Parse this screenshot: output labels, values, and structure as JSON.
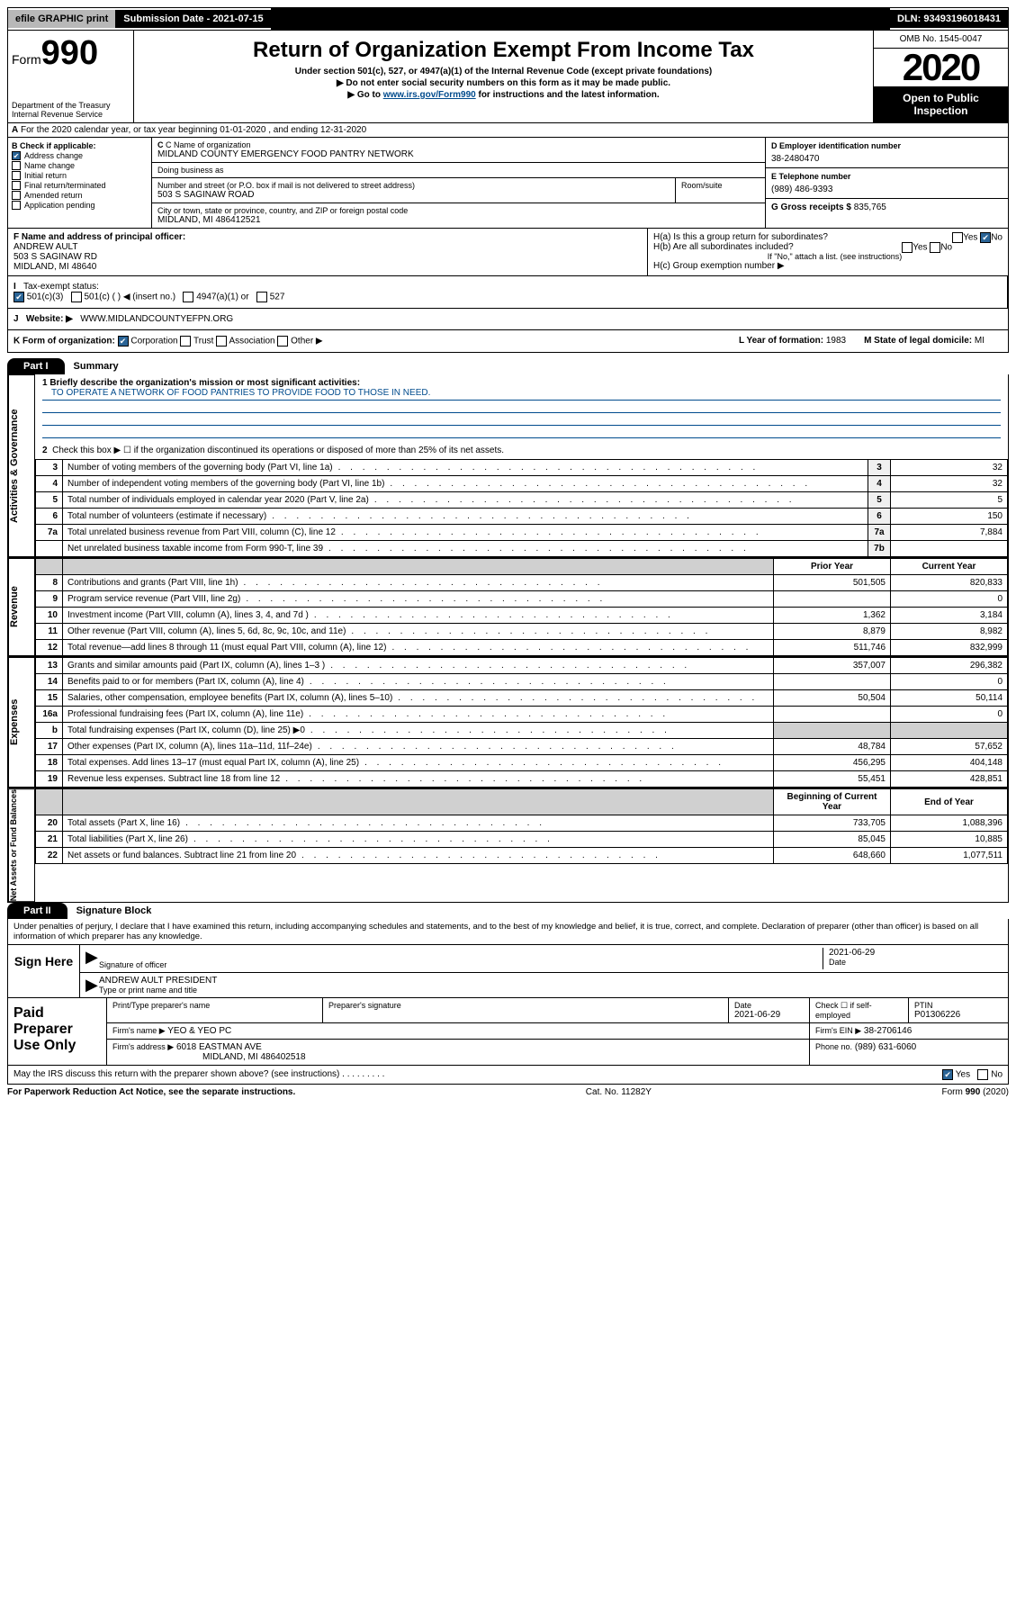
{
  "topbar": {
    "efile": "efile GRAPHIC print",
    "sub_label": "Submission Date - 2021-07-15",
    "dln": "DLN: 93493196018431"
  },
  "header": {
    "form_prefix": "Form",
    "form_num": "990",
    "dept": "Department of the Treasury\nInternal Revenue Service",
    "title": "Return of Organization Exempt From Income Tax",
    "sub1": "Under section 501(c), 527, or 4947(a)(1) of the Internal Revenue Code (except private foundations)",
    "sub2": "▶ Do not enter social security numbers on this form as it may be made public.",
    "sub3_pre": "▶ Go to ",
    "sub3_link": "www.irs.gov/Form990",
    "sub3_post": " for instructions and the latest information.",
    "omb": "OMB No. 1545-0047",
    "year": "2020",
    "open": "Open to Public Inspection"
  },
  "rowA": "For the 2020 calendar year, or tax year beginning 01-01-2020   , and ending 12-31-2020",
  "checkB": {
    "header": "B Check if applicable:",
    "items": [
      {
        "label": "Address change",
        "checked": true
      },
      {
        "label": "Name change",
        "checked": false
      },
      {
        "label": "Initial return",
        "checked": false
      },
      {
        "label": "Final return/terminated",
        "checked": false
      },
      {
        "label": "Amended return",
        "checked": false
      },
      {
        "label": "Application pending",
        "checked": false
      }
    ]
  },
  "org": {
    "name_label": "C Name of organization",
    "name": "MIDLAND COUNTY EMERGENCY FOOD PANTRY NETWORK",
    "dba_label": "Doing business as",
    "addr_label": "Number and street (or P.O. box if mail is not delivered to street address)",
    "addr": "503 S SAGINAW ROAD",
    "room_label": "Room/suite",
    "city_label": "City or town, state or province, country, and ZIP or foreign postal code",
    "city": "MIDLAND, MI  486412521"
  },
  "boxD": {
    "label": "D Employer identification number",
    "value": "38-2480470"
  },
  "boxE": {
    "label": "E Telephone number",
    "value": "(989) 486-9393"
  },
  "boxG": {
    "label": "G Gross receipts $",
    "value": "835,765"
  },
  "boxF": {
    "label": "F  Name and address of principal officer:",
    "name": "ANDREW AULT",
    "addr1": "503 S SAGINAW RD",
    "addr2": "MIDLAND, MI  48640"
  },
  "boxH": {
    "a": "H(a)  Is this a group return for subordinates?",
    "b": "H(b)  Are all subordinates included?",
    "b_note": "If \"No,\" attach a list. (see instructions)",
    "c": "H(c)  Group exemption number ▶"
  },
  "rowI": {
    "label": "Tax-exempt status:",
    "opts": [
      "501(c)(3)",
      "501(c) (  ) ◀ (insert no.)",
      "4947(a)(1) or",
      "527"
    ]
  },
  "rowJ": {
    "label": "Website: ▶",
    "value": "WWW.MIDLANDCOUNTYEFPN.ORG"
  },
  "rowK": {
    "k": "K Form of organization:",
    "opts": [
      "Corporation",
      "Trust",
      "Association",
      "Other ▶"
    ],
    "l_label": "L Year of formation:",
    "l_val": "1983",
    "m_label": "M State of legal domicile:",
    "m_val": "MI"
  },
  "part1": {
    "hdr": "Part I",
    "title": "Summary"
  },
  "mission": {
    "q": "1  Briefly describe the organization's mission or most significant activities:",
    "a": "TO OPERATE A NETWORK OF FOOD PANTRIES TO PROVIDE FOOD TO THOSE IN NEED."
  },
  "line2": "Check this box ▶ ☐  if the organization discontinued its operations or disposed of more than 25% of its net assets.",
  "gov_rows": [
    {
      "n": "3",
      "t": "Number of voting members of the governing body (Part VI, line 1a)",
      "l": "3",
      "v": "32"
    },
    {
      "n": "4",
      "t": "Number of independent voting members of the governing body (Part VI, line 1b)",
      "l": "4",
      "v": "32"
    },
    {
      "n": "5",
      "t": "Total number of individuals employed in calendar year 2020 (Part V, line 2a)",
      "l": "5",
      "v": "5"
    },
    {
      "n": "6",
      "t": "Total number of volunteers (estimate if necessary)",
      "l": "6",
      "v": "150"
    },
    {
      "n": "7a",
      "t": "Total unrelated business revenue from Part VIII, column (C), line 12",
      "l": "7a",
      "v": "7,884"
    },
    {
      "n": "",
      "t": "Net unrelated business taxable income from Form 990-T, line 39",
      "l": "7b",
      "v": ""
    }
  ],
  "col_hdrs": {
    "py": "Prior Year",
    "cy": "Current Year",
    "boy": "Beginning of Current Year",
    "eoy": "End of Year"
  },
  "rev_rows": [
    {
      "n": "8",
      "t": "Contributions and grants (Part VIII, line 1h)",
      "py": "501,505",
      "cy": "820,833"
    },
    {
      "n": "9",
      "t": "Program service revenue (Part VIII, line 2g)",
      "py": "",
      "cy": "0"
    },
    {
      "n": "10",
      "t": "Investment income (Part VIII, column (A), lines 3, 4, and 7d )",
      "py": "1,362",
      "cy": "3,184"
    },
    {
      "n": "11",
      "t": "Other revenue (Part VIII, column (A), lines 5, 6d, 8c, 9c, 10c, and 11e)",
      "py": "8,879",
      "cy": "8,982"
    },
    {
      "n": "12",
      "t": "Total revenue—add lines 8 through 11 (must equal Part VIII, column (A), line 12)",
      "py": "511,746",
      "cy": "832,999"
    }
  ],
  "exp_rows": [
    {
      "n": "13",
      "t": "Grants and similar amounts paid (Part IX, column (A), lines 1–3 )",
      "py": "357,007",
      "cy": "296,382"
    },
    {
      "n": "14",
      "t": "Benefits paid to or for members (Part IX, column (A), line 4)",
      "py": "",
      "cy": "0"
    },
    {
      "n": "15",
      "t": "Salaries, other compensation, employee benefits (Part IX, column (A), lines 5–10)",
      "py": "50,504",
      "cy": "50,114"
    },
    {
      "n": "16a",
      "t": "Professional fundraising fees (Part IX, column (A), line 11e)",
      "py": "",
      "cy": "0"
    },
    {
      "n": "b",
      "t": "Total fundraising expenses (Part IX, column (D), line 25) ▶0",
      "py": "GREY",
      "cy": "GREY"
    },
    {
      "n": "17",
      "t": "Other expenses (Part IX, column (A), lines 11a–11d, 11f–24e)",
      "py": "48,784",
      "cy": "57,652"
    },
    {
      "n": "18",
      "t": "Total expenses. Add lines 13–17 (must equal Part IX, column (A), line 25)",
      "py": "456,295",
      "cy": "404,148"
    },
    {
      "n": "19",
      "t": "Revenue less expenses. Subtract line 18 from line 12",
      "py": "55,451",
      "cy": "428,851"
    }
  ],
  "na_rows": [
    {
      "n": "20",
      "t": "Total assets (Part X, line 16)",
      "py": "733,705",
      "cy": "1,088,396"
    },
    {
      "n": "21",
      "t": "Total liabilities (Part X, line 26)",
      "py": "85,045",
      "cy": "10,885"
    },
    {
      "n": "22",
      "t": "Net assets or fund balances. Subtract line 21 from line 20",
      "py": "648,660",
      "cy": "1,077,511"
    }
  ],
  "sides": {
    "gov": "Activities & Governance",
    "rev": "Revenue",
    "exp": "Expenses",
    "na": "Net Assets or Fund Balances"
  },
  "part2": {
    "hdr": "Part II",
    "title": "Signature Block"
  },
  "perjury": "Under penalties of perjury, I declare that I have examined this return, including accompanying schedules and statements, and to the best of my knowledge and belief, it is true, correct, and complete. Declaration of preparer (other than officer) is based on all information of which preparer has any knowledge.",
  "sign": {
    "here": "Sign Here",
    "sig_label": "Signature of officer",
    "date": "2021-06-29",
    "date_label": "Date",
    "name": "ANDREW AULT PRESIDENT",
    "name_label": "Type or print name and title"
  },
  "paid": {
    "left": "Paid Preparer Use Only",
    "h1": "Print/Type preparer's name",
    "h2": "Preparer's signature",
    "h3": "Date",
    "h3v": "2021-06-29",
    "h4": "Check ☐ if self-employed",
    "h5": "PTIN",
    "h5v": "P01306226",
    "firm_l": "Firm's name    ▶",
    "firm_v": "YEO & YEO PC",
    "ein_l": "Firm's EIN ▶",
    "ein_v": "38-2706146",
    "addr_l": "Firm's address ▶",
    "addr_v": "6018 EASTMAN AVE",
    "addr_v2": "MIDLAND, MI  486402518",
    "phone_l": "Phone no.",
    "phone_v": "(989) 631-6060"
  },
  "discuss": "May the IRS discuss this return with the preparer shown above? (see instructions)",
  "footer": {
    "l": "For Paperwork Reduction Act Notice, see the separate instructions.",
    "c": "Cat. No. 11282Y",
    "r": "Form 990 (2020)"
  }
}
